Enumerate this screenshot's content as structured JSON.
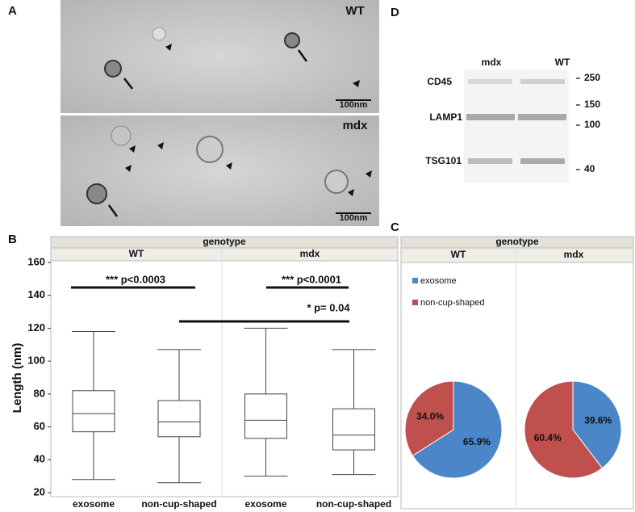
{
  "panel_labels": [
    "A",
    "B",
    "C",
    "D"
  ],
  "panel_a": {
    "images": [
      {
        "label": "WT",
        "scale": "100nm"
      },
      {
        "label": "mdx",
        "scale": "100nm"
      }
    ]
  },
  "panel_d": {
    "lanes": [
      "mdx",
      "WT"
    ],
    "proteins": [
      "CD45",
      "LAMP1",
      "TSG101"
    ],
    "markers": [
      "250",
      "150",
      "100",
      "40"
    ]
  },
  "chart_data": [
    {
      "type": "box",
      "header": "genotype",
      "ylabel": "Length (nm)",
      "ylim": [
        20,
        160
      ],
      "yticks": [
        20,
        40,
        60,
        80,
        100,
        120,
        140,
        160
      ],
      "facets": [
        {
          "name": "WT",
          "categories": [
            "exosome",
            "non-cup-shaped"
          ],
          "boxes": [
            {
              "min": 28,
              "q1": 57,
              "median": 68,
              "q3": 82,
              "max": 118
            },
            {
              "min": 26,
              "q1": 54,
              "median": 63,
              "q3": 76,
              "max": 107
            }
          ]
        },
        {
          "name": "mdx",
          "categories": [
            "exosome",
            "non-cup-shaped"
          ],
          "boxes": [
            {
              "min": 30,
              "q1": 53,
              "median": 64,
              "q3": 80,
              "max": 120
            },
            {
              "min": 31,
              "q1": 46,
              "median": 55,
              "q3": 71,
              "max": 107
            }
          ]
        }
      ],
      "annotations": [
        "*** p<0.0003",
        "*** p<0.0001",
        "* p= 0.04"
      ]
    },
    {
      "type": "pie",
      "header": "genotype",
      "categories": [
        "exosome",
        "non-cup-shaped"
      ],
      "colors": [
        "#4a86c8",
        "#c0504d"
      ],
      "facets": [
        {
          "name": "WT",
          "values": [
            65.9,
            34.0
          ],
          "value_labels": [
            "65.9%",
            "34.0%"
          ]
        },
        {
          "name": "mdx",
          "values": [
            39.6,
            60.4
          ],
          "value_labels": [
            "39.6%",
            "60.4%"
          ]
        }
      ]
    }
  ]
}
